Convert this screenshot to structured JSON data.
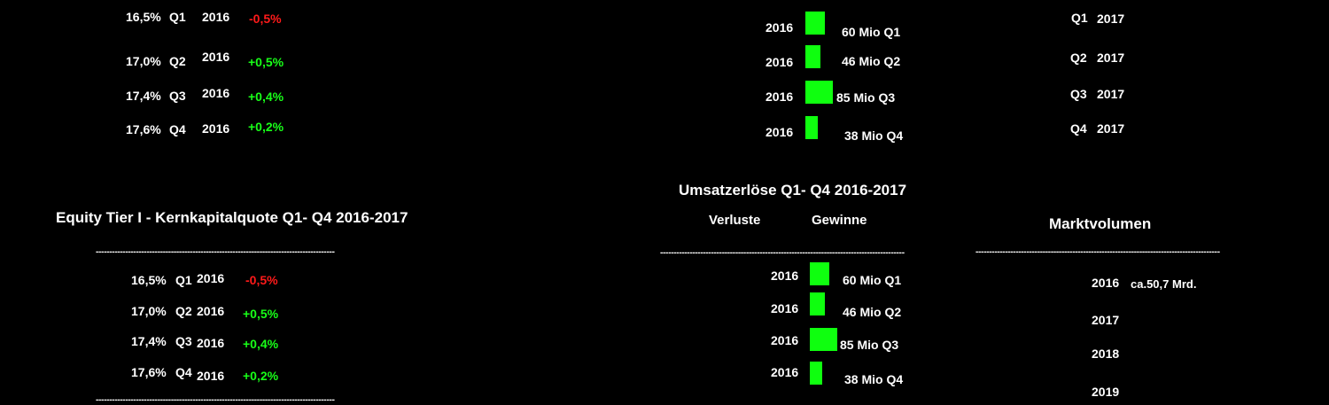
{
  "colors": {
    "background": "#000000",
    "text": "#ffffff",
    "negative": "#ff1a1a",
    "positive": "#18ff18",
    "bar": "#0fff0f"
  },
  "equity_top": {
    "rows": [
      {
        "pct": "16,5%",
        "q": "Q1",
        "year": "2016",
        "change": "-0,5%",
        "sign": "neg"
      },
      {
        "pct": "17,0%",
        "q": "Q2",
        "year": "2016",
        "change": "+0,5%",
        "sign": "pos"
      },
      {
        "pct": "17,4%",
        "q": "Q3",
        "year": "2016",
        "change": "+0,4%",
        "sign": "pos"
      },
      {
        "pct": "17,6%",
        "q": "Q4",
        "year": "2016",
        "change": "+0,2%",
        "sign": "pos"
      }
    ]
  },
  "equity": {
    "title": "Equity Tier I - Kernkapitalquote Q1- Q4 2016-2017",
    "divider": "-----------------------------------------------------------------------------------------",
    "rows": [
      {
        "pct": "16,5%",
        "q": "Q1",
        "year": "2016",
        "change": "-0,5%",
        "sign": "neg"
      },
      {
        "pct": "17,0%",
        "q": "Q2",
        "year": "2016",
        "change": "+0,5%",
        "sign": "pos"
      },
      {
        "pct": "17,4%",
        "q": "Q3",
        "year": "2016",
        "change": "+0,4%",
        "sign": "pos"
      },
      {
        "pct": "17,6%",
        "q": "Q4",
        "year": "2016",
        "change": "+0,2%",
        "sign": "pos"
      }
    ]
  },
  "chart_data": [
    {
      "type": "bar",
      "title": "",
      "categories": [
        "Q1",
        "Q2",
        "Q3",
        "Q4"
      ],
      "year": "2016",
      "values": [
        60,
        46,
        85,
        38
      ],
      "value_labels": [
        "60 Mio Q1",
        "46 Mio Q2",
        "85 Mio Q3",
        "38 Mio Q4"
      ],
      "unit": "Mio",
      "ylim": [
        0,
        85
      ]
    },
    {
      "type": "bar",
      "title": "Umsatzerlöse Q1- Q4 2016-2017",
      "headers": {
        "left": "Verluste",
        "right": "Gewinne"
      },
      "divider": "-------------------------------------------------------------------------------------------",
      "categories": [
        "Q1",
        "Q2",
        "Q3",
        "Q4"
      ],
      "year": "2016",
      "values": [
        60,
        46,
        85,
        38
      ],
      "value_labels": [
        "60 Mio Q1",
        "46 Mio Q2",
        "85 Mio Q3",
        "38 Mio Q4"
      ],
      "unit": "Mio",
      "ylim": [
        0,
        85
      ]
    }
  ],
  "top_right": {
    "rows": [
      {
        "q": "Q1",
        "year": "2017"
      },
      {
        "q": "Q2",
        "year": "2017"
      },
      {
        "q": "Q3",
        "year": "2017"
      },
      {
        "q": "Q4",
        "year": "2017"
      }
    ]
  },
  "markt": {
    "title": "Marktvolumen",
    "divider": "-------------------------------------------------------------------------------------------",
    "rows": [
      {
        "year": "2016",
        "value": "ca.50,7 Mrd."
      },
      {
        "year": "2017",
        "value": ""
      },
      {
        "year": "2018",
        "value": ""
      },
      {
        "year": "2019",
        "value": ""
      }
    ]
  }
}
